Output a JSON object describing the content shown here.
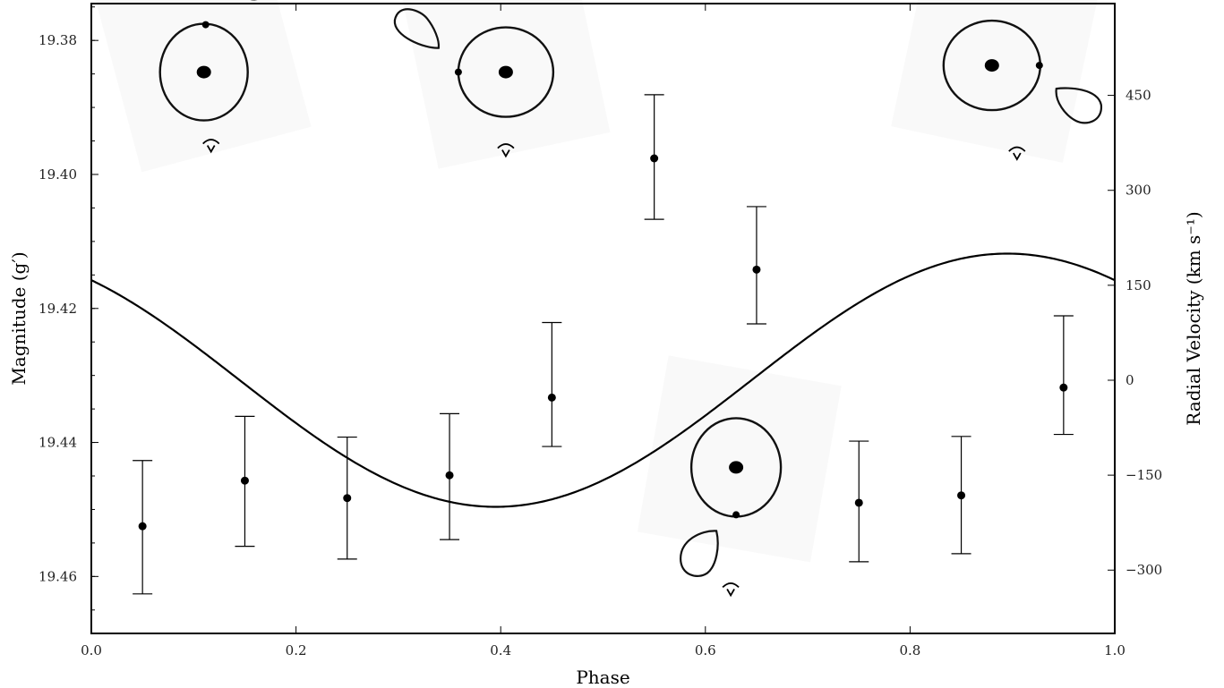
{
  "chart_data": {
    "type": "scatter",
    "xlabel": "Phase",
    "ylabel_left": "Magnitude (g′)",
    "ylabel_right": "Radial Velocity (km s⁻¹)",
    "xlim": [
      0.0,
      1.0
    ],
    "ylim_left": [
      19.4685,
      19.3745
    ],
    "ylim_right": [
      -400,
      595
    ],
    "x_ticks": [
      "0.0",
      "0.2",
      "0.4",
      "0.6",
      "0.8",
      "1.0"
    ],
    "y_ticks_left": [
      "19.38",
      "19.40",
      "19.42",
      "19.44",
      "19.46"
    ],
    "y_ticks_right": [
      "450",
      "300",
      "150",
      "0",
      "−150",
      "−300"
    ],
    "grid": false,
    "series": [
      {
        "kind": "errorbar",
        "axis": "left",
        "x": [
          0.05,
          0.15,
          0.25,
          0.35,
          0.45,
          0.55,
          0.65,
          0.75,
          0.85,
          0.95
        ],
        "y": [
          19.4525,
          19.4457,
          19.4483,
          19.4449,
          19.4333,
          19.3976,
          19.4142,
          19.449,
          19.4479,
          19.4318
        ],
        "yerr_low": [
          19.4427,
          19.4361,
          19.4392,
          19.4357,
          19.4221,
          19.3881,
          19.4048,
          19.4398,
          19.4391,
          19.4211
        ],
        "yerr_high": [
          19.4626,
          19.4555,
          19.4574,
          19.4545,
          19.4406,
          19.4067,
          19.4223,
          19.4578,
          19.4566,
          19.4388
        ]
      },
      {
        "kind": "line",
        "axis": "right",
        "phase_of_max": 0.895,
        "amplitude": 200,
        "offset": 0
      }
    ],
    "annotations": [
      {
        "kind": "binary-geometry-inset",
        "x": 0.11,
        "y": 19.393
      },
      {
        "kind": "binary-geometry-inset",
        "x": 0.405,
        "y": 19.393
      },
      {
        "kind": "binary-geometry-inset",
        "x": 0.63,
        "y": 19.452
      },
      {
        "kind": "binary-geometry-inset",
        "x": 0.88,
        "y": 19.392
      }
    ]
  }
}
